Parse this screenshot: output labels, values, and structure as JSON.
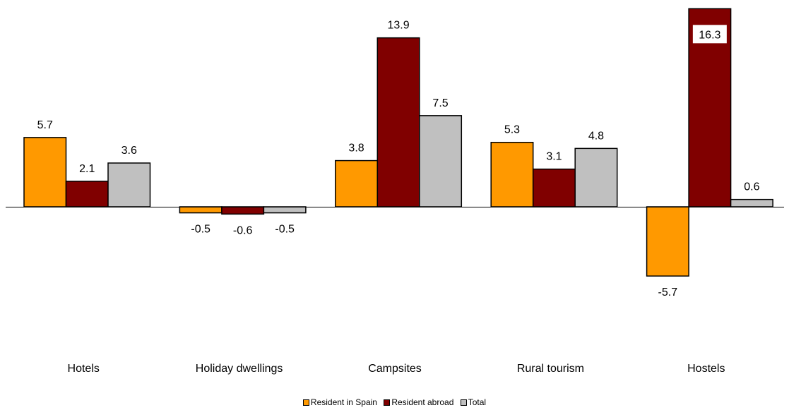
{
  "chart_data": {
    "type": "bar",
    "categories": [
      "Hotels",
      "Holiday dwellings",
      "Campsites",
      "Rural tourism",
      "Hostels"
    ],
    "series": [
      {
        "name": "Resident in Spain",
        "color": "#FF9900",
        "values": [
          5.7,
          -0.5,
          3.8,
          5.3,
          -5.7
        ]
      },
      {
        "name": "Resident abroad",
        "color": "#800000",
        "values": [
          2.1,
          -0.6,
          13.9,
          3.1,
          16.3
        ]
      },
      {
        "name": "Total",
        "color": "#C0C0C0",
        "values": [
          3.6,
          -0.5,
          7.5,
          4.8,
          0.6
        ]
      }
    ],
    "ylim": [
      -7,
      18
    ],
    "grid": false,
    "legend_position": "bottom"
  }
}
